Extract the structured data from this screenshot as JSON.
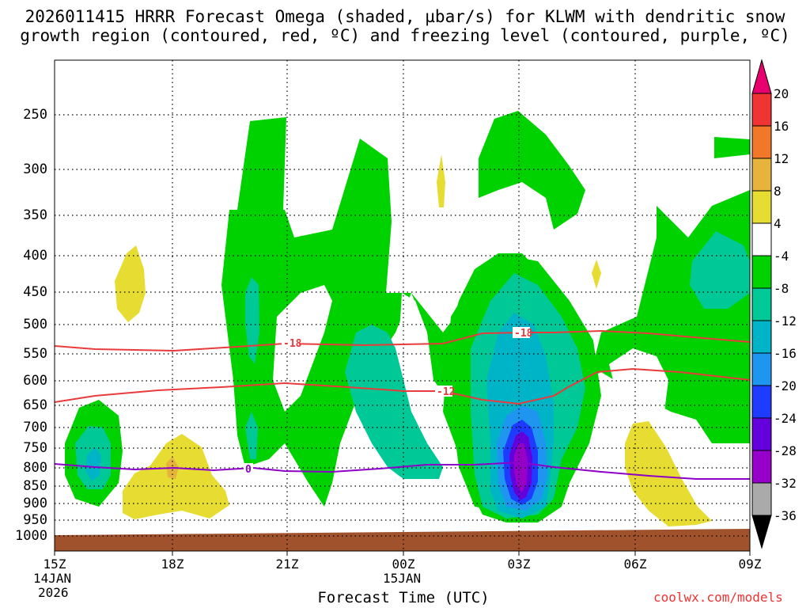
{
  "title": {
    "line1": "2026011415 HRRR Forecast Omega (shaded, µbar/s) for KLWM with dendritic snow",
    "line2": "growth region (contoured, red, ºC) and freezing level (contoured, purple, ºC)"
  },
  "chart_data": {
    "type": "time-height contour",
    "xlabel": "Forecast Time (UTC)",
    "x_ticks": [
      {
        "label": "15Z",
        "sub1": "14JAN",
        "sub2": "2026"
      },
      {
        "label": "18Z"
      },
      {
        "label": "21Z"
      },
      {
        "label": "00Z",
        "sub1": "15JAN"
      },
      {
        "label": "03Z"
      },
      {
        "label": "06Z"
      },
      {
        "label": "09Z"
      }
    ],
    "y_ticks": [
      "250",
      "300",
      "350",
      "400",
      "450",
      "500",
      "550",
      "600",
      "650",
      "700",
      "750",
      "800",
      "850",
      "900",
      "950",
      "1000"
    ],
    "y_scale": "pressure (hPa), inverted",
    "colorbar": {
      "labels": [
        "20",
        "16",
        "12",
        "8",
        "4",
        "-4",
        "-8",
        "-12",
        "-16",
        "-20",
        "-24",
        "-28",
        "-32",
        "-36"
      ],
      "colors": [
        "#e8006e",
        "#f03434",
        "#f07828",
        "#e6b43c",
        "#e6dc32",
        "#ffffff",
        "#00d200",
        "#00c896",
        "#00b4c8",
        "#1e96f0",
        "#1e3cff",
        "#6400dc",
        "#9600c8",
        "#aaaaaa",
        "#000000"
      ]
    },
    "contours": {
      "dgz_red": {
        "color": "#e83c3c",
        "labels": [
          "-18",
          "-18",
          "-12"
        ]
      },
      "freezing_purple": {
        "color": "#8c00c8",
        "labels": [
          "0"
        ]
      }
    }
  },
  "credit": "coolwx.com/models"
}
